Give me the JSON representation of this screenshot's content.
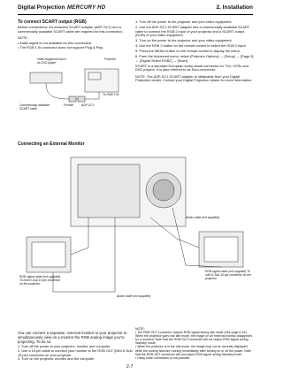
{
  "header": {
    "brand": "Digital Projection",
    "product": "MERCURY HD",
    "section": "2. Installation"
  },
  "scart": {
    "title": "To connect SCART output (RGB)",
    "intro": "Before connections: An exclusive SCART adapter (ADP-SC1) and a commercially available SCART cable are required for this connection.",
    "note_title": "NOTE:",
    "notes": [
      "• Audio signal is not available for this connection.",
      "• The RGB 1 IN connector does not support Plug & Play."
    ],
    "diagram": {
      "video": "Video equipment such as DVD player",
      "projector": "Projector",
      "cable": "Commercially available SCART cable",
      "female": "Female",
      "adapter": "ADP-SC1",
      "rgb2": "To RGB 2 IN"
    },
    "steps": [
      "1. Turn off the power to the projector and your video equipment.",
      "2. Use the ADP-SC1 SCART adapter and a commercially available SCART cable to connect the RGB 2 input of your projector and a SCART output (RGB) of your video equipment.",
      "3. Turn on the power to the projector and your video equipment.",
      "4. Use the RGB 2 button on the remote control to select the RGB 2 input.",
      "5. Press the MENU button on the remote control to display the menu.",
      "6. From the Advanced menu, select [Projector Options] → [Setup] → [Page 3] → [Signal Select RGB2] → [Scart]."
    ],
    "scart_info": "SCART is a standard European audio-visual connector for TVs, VCRs and DVD players. It is also referred to as Euro-connector.",
    "dealer_note": "NOTE: The ADP-SC1 SCART adapter is obtainable from your Digital Projection dealer. Contact your Digital Projection dealer for more information."
  },
  "monitor": {
    "title": "Connecting an External Monitor",
    "diagram": {
      "rgb_left": "RGB signal cable (not supplied) To mini D-Sub 15-pin connector on the projector.",
      "audio_top": "Audio cable (not supplied)",
      "audio_bottom": "Audio cable (not supplied)",
      "rgb_right": "RGB signal cable (not supplied) To mini D-Sub 15-pin connector on the projector."
    },
    "intro": "You can connect a separate, external monitor to your projector to simultaneously view on a monitor the RGB analog image you're projecting. To do so:",
    "steps": [
      "1. Turn off the power to your projector, monitor and computer.",
      "2. Use a 15-pin cable to connect your monitor to the RGB OUT (Mini D-Sub 15 pin) connector on your projector.",
      "3. Turn on the projector, monitor and the computer."
    ],
    "note_title": "NOTE:",
    "notes": [
      "• The RGB OUT connector outputs RGB signal during idle mode (See page 6-15). When the projector goes into idle mode, the image on an external monitor disappears for a moment. Note that the RGB OUT connector will not output RGB signal during Standby mode.",
      "• When the projector is in the Idle mode, the image may not be correctly displayed while the cooling fans are running immediately after turning on or off the power. Note that the RGB OUT connector will not output RGB signal during Standby mode.",
      "• Daisy chain connection is not possible."
    ]
  },
  "page_number": "2-7"
}
